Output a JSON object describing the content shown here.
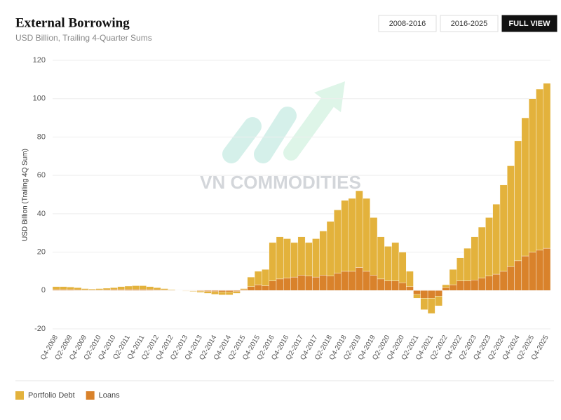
{
  "chart_data": {
    "type": "stacked_bar",
    "title": "External Borrowing",
    "subtitle": "USD Billion, Trailing 4-Quarter Sums",
    "y_label": "USD Billion (Trailing 4Q Sum)",
    "buttons": [
      "2008-2016",
      "2016-2025",
      "FULL VIEW"
    ],
    "active_button": 2,
    "watermark": "VN COMMODITIES",
    "categories": [
      "Q4-2008",
      null,
      "Q2-2009",
      null,
      "Q4-2009",
      null,
      "Q2-2010",
      null,
      "Q4-2010",
      null,
      "Q2-2011",
      null,
      "Q4-2011",
      null,
      "Q2-2012",
      null,
      "Q4-2012",
      null,
      "Q2-2013",
      null,
      "Q4-2013",
      null,
      "Q2-2014",
      null,
      "Q4-2014",
      null,
      "Q2-2015",
      null,
      "Q4-2015",
      null,
      "Q2-2016",
      null,
      "Q4-2016",
      null,
      "Q2-2017",
      null,
      "Q4-2017",
      null,
      "Q2-2018",
      null,
      "Q4-2018",
      null,
      "Q2-2019",
      null,
      "Q4-2019",
      null,
      "Q2-2020",
      null,
      "Q4-2020",
      null,
      "Q2-2021",
      null,
      "Q4-2021",
      null,
      "Q2-2022",
      null,
      "Q4-2022",
      null,
      "Q2-2023",
      null,
      "Q4-2023",
      null,
      "Q2-2024",
      null,
      "Q4-2024",
      null,
      "Q2-2025",
      null,
      "Q4-2025"
    ],
    "series": [
      {
        "name": "Loans",
        "color": "#d9822b",
        "values": [
          0.5,
          0.5,
          0.5,
          0.4,
          0.3,
          0.3,
          0.3,
          0.4,
          0.5,
          0.5,
          0.6,
          0.6,
          0.6,
          0.5,
          0.4,
          0.3,
          0.2,
          -0.1,
          -0.1,
          -0.2,
          -0.3,
          -0.5,
          -0.6,
          -0.7,
          -0.7,
          -0.5,
          0.5,
          2,
          3,
          2.5,
          5,
          6,
          6.5,
          7,
          8,
          7.5,
          7,
          8,
          7.5,
          9,
          10,
          10,
          12,
          10,
          8,
          6,
          5,
          5,
          4,
          2,
          -2,
          -4,
          -4,
          -3,
          1.5,
          3,
          5,
          5,
          5.5,
          6.5,
          7.5,
          8.5,
          10,
          12.5,
          15.5,
          18,
          20,
          21,
          22
        ]
      },
      {
        "name": "Portfolio Debt",
        "color": "#e3b23c",
        "values": [
          1.5,
          1.5,
          1.3,
          1.1,
          0.7,
          0.5,
          0.7,
          0.8,
          1,
          1.5,
          1.7,
          1.9,
          1.9,
          1.5,
          1.1,
          0.7,
          0.3,
          -0.1,
          -0.2,
          -0.3,
          -0.7,
          -1,
          -1.4,
          -1.6,
          -1.6,
          -1,
          0.5,
          5,
          7,
          8.5,
          20,
          22,
          20.5,
          18,
          20,
          17.5,
          20,
          23,
          28.5,
          33,
          37,
          38,
          40,
          38,
          30,
          22,
          18,
          20,
          16,
          8,
          -2,
          -6,
          -8,
          -5,
          1.5,
          8,
          12,
          17,
          22.5,
          26.5,
          30.5,
          36.5,
          45,
          52.5,
          62.5,
          72,
          80,
          84,
          86
        ]
      }
    ],
    "legend_order": [
      1,
      0
    ],
    "ylim": [
      -20,
      120
    ],
    "yticks": [
      -20,
      0,
      20,
      40,
      60,
      80,
      100,
      120
    ],
    "grid": true
  }
}
